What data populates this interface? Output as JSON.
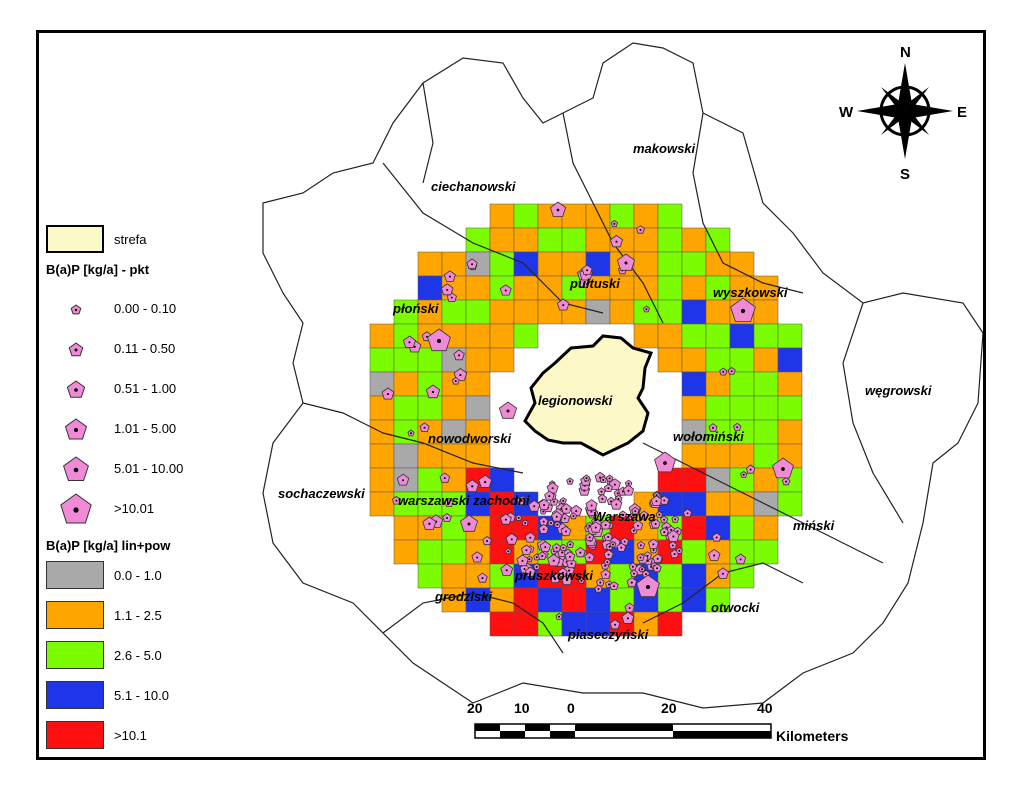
{
  "legend": {
    "strefa": {
      "label": "strefa",
      "color": "#fdf8c8"
    },
    "points_title": "B(a)P [kg/a] - pkt",
    "points": [
      "0.00 - 0.10",
      "0.11 - 0.50",
      "0.51 - 1.00",
      "1.01 - 5.00",
      "5.01 - 10.00",
      ">10.01"
    ],
    "area_title": "B(a)P [kg/a] lin+pow",
    "areas": [
      {
        "label": "0.0 - 1.0",
        "color": "#a9a9a9"
      },
      {
        "label": "1.1 - 2.5",
        "color": "#ffa500"
      },
      {
        "label": "2.6 - 5.0",
        "color": "#7cfc00"
      },
      {
        "label": "5.1 - 10.0",
        "color": "#1f35e8"
      },
      {
        "label": ">10.1",
        "color": "#ff1010"
      }
    ],
    "marker_color": "#f08ad6"
  },
  "compass": {
    "n": "N",
    "s": "S",
    "e": "E",
    "w": "W"
  },
  "scale": {
    "ticks": [
      "20",
      "10",
      "0",
      "20",
      "40"
    ],
    "unit": "Kilometers"
  },
  "places": {
    "makowski": "makowski",
    "ciechanowski": "ciechanowski",
    "pultuski": "pułtuski",
    "wyszkowski": "wyszkowski",
    "plonski": "płoński",
    "legionowski": "legionowski",
    "wegrowski": "węgrowski",
    "nowodworski": "nowodworski",
    "wolominski": "wołomiński",
    "sochaczewski": "sochaczewski",
    "warszawski_zachodni": "warszawski zachodni",
    "warszawa": "Warszawa",
    "minski": "miński",
    "pruszkowski": "pruszkowski",
    "grodziski": "grodziski",
    "otwocki": "otwocki",
    "piaseczynski": "piaseczyński"
  }
}
